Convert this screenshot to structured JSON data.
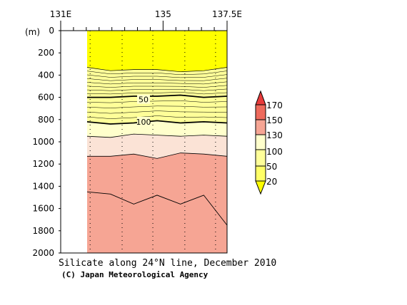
{
  "chart_data": {
    "type": "heatmap",
    "title": "Silicate along 24°N line, December 2010",
    "credit": "(C) Japan Meteorological Agency",
    "ylabel": "(m)",
    "x_ticks": [
      "131E",
      "135",
      "137.5E"
    ],
    "x_range": [
      131,
      137.5
    ],
    "ylim": [
      0,
      2000
    ],
    "y_inverted": true,
    "y_ticks": [
      "0",
      "200",
      "400",
      "600",
      "800",
      "1000",
      "1200",
      "1400",
      "1600",
      "1800",
      "2000"
    ],
    "y_tick_values": [
      0,
      200,
      400,
      600,
      800,
      1000,
      1200,
      1400,
      1600,
      1800,
      2000
    ],
    "station_longitudes": [
      132.15,
      133.4,
      134.6,
      135.85,
      137.05,
      138.1
    ],
    "levels": [
      20,
      50,
      100,
      130,
      150,
      170
    ],
    "colorbar_labels": [
      "20",
      "50",
      "100",
      "130",
      "150",
      "170"
    ],
    "band_colors": [
      "#ffff00",
      "#ffff66",
      "#ffff99",
      "#ffffcc",
      "#fbe3d6",
      "#f6a594",
      "#ee6a5c",
      "#e83b3b"
    ],
    "contour_labels": [
      "50",
      "100"
    ],
    "boundaries": {
      "b130": [
        1130,
        1130,
        1110,
        1150,
        1100,
        1110,
        1130
      ],
      "b100": [
        950,
        960,
        930,
        940,
        950,
        940,
        950
      ],
      "b50": [
        820,
        840,
        830,
        810,
        830,
        820,
        830
      ],
      "b20": [
        330,
        360,
        350,
        350,
        370,
        360,
        330
      ],
      "c150": [
        1450,
        1470,
        1560,
        1480,
        1560,
        1480,
        1750
      ],
      "c600": [
        600,
        600,
        590,
        590,
        580,
        600,
        590
      ]
    }
  }
}
